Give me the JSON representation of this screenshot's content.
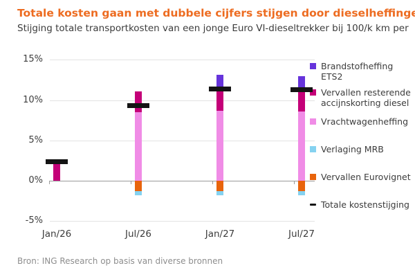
{
  "header": {
    "title": "Totale kosten gaan met dubbele cijfers stijgen door dieselheffingen",
    "subtitle": "Stijging totale transportkosten van een jonge Euro VI-dieseltrekker bij 100/k km per"
  },
  "footer": {
    "source": "Bron: ING Research op basis van diverse bronnen"
  },
  "colors": {
    "title": "#ED6C21",
    "text": "#3C3C3C",
    "footer_text": "#8E8E8E",
    "grid": "#E3E3E3",
    "zero_line": "#9A9A9A",
    "purple": "#6633DB",
    "magenta": "#C40078",
    "pink": "#F08CE6",
    "blue": "#85D2F0",
    "orange": "#E8640C",
    "total": "#141414"
  },
  "chart_data": {
    "type": "bar",
    "stacked": true,
    "categories": [
      "Jan/26",
      "Jul/26",
      "Jan/27",
      "Jul/27"
    ],
    "series": [
      {
        "name": "Vrachtwagenheffing",
        "color_key": "pink",
        "values": [
          0,
          8.5,
          8.7,
          8.6
        ]
      },
      {
        "name": "Vervallen resterende accijnskorting diesel",
        "color_key": "magenta",
        "values": [
          2.4,
          2.6,
          2.7,
          2.7
        ]
      },
      {
        "name": "Brandstofheffing ETS2",
        "color_key": "purple",
        "values": [
          0,
          0,
          1.7,
          1.7
        ]
      },
      {
        "name": "Vervallen Eurovignet",
        "color_key": "orange",
        "values": [
          0,
          -1.3,
          -1.3,
          -1.3
        ]
      },
      {
        "name": "Verlaging MRB",
        "color_key": "blue",
        "values": [
          0,
          -0.5,
          -0.5,
          -0.5
        ]
      }
    ],
    "total_line": {
      "name": "Totale kostenstijging",
      "values": [
        2.4,
        9.3,
        11.4,
        11.3
      ]
    },
    "title": "Totale kosten gaan met dubbele cijfers stijgen door dieselheffingen",
    "xlabel": "",
    "ylabel": "",
    "y_tick_labels": [
      "15%",
      "10%",
      "5%",
      "0%",
      "-5%"
    ],
    "y_ticks": [
      15,
      10,
      5,
      0,
      -5
    ],
    "ylim": [
      -5,
      15
    ],
    "grid": true,
    "legend_position": "right"
  },
  "legend": {
    "items": [
      {
        "label": "Brandstofheffing ETS2",
        "marker": "square",
        "color_key": "purple"
      },
      {
        "label": "Vervallen resterende accijnskorting diesel",
        "marker": "square",
        "color_key": "magenta"
      },
      {
        "label": "Vrachtwagenheffing",
        "marker": "square",
        "color_key": "pink"
      },
      {
        "label": "Verlaging MRB",
        "marker": "square",
        "color_key": "blue"
      },
      {
        "label": "Vervallen Eurovignet",
        "marker": "square",
        "color_key": "orange"
      },
      {
        "label": "Totale kostenstijging",
        "marker": "dash",
        "color_key": "total"
      }
    ]
  }
}
